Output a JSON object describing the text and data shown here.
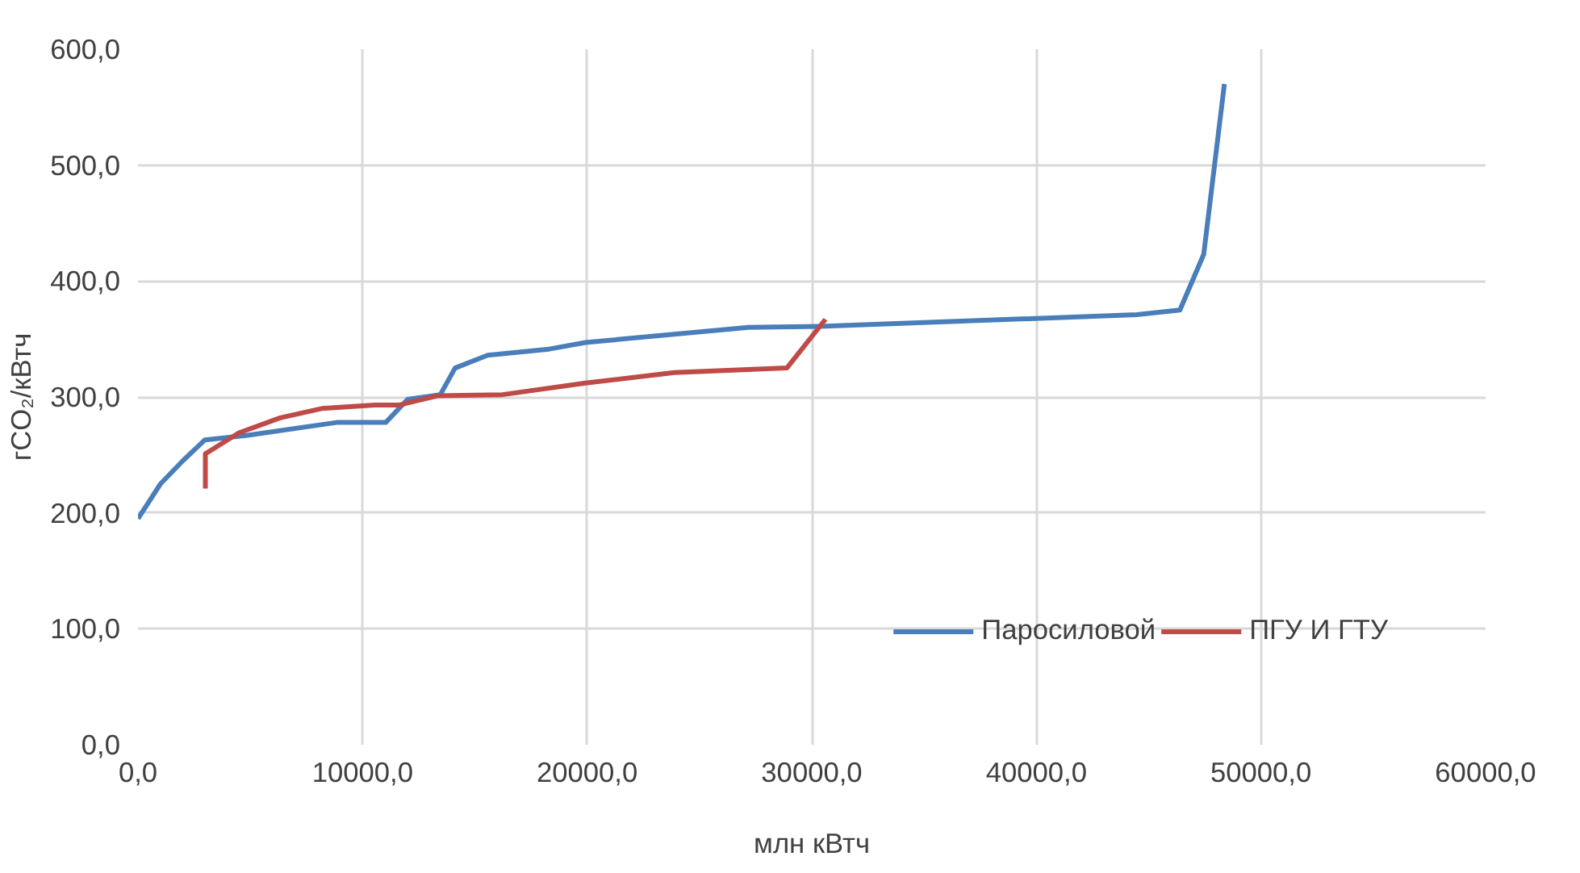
{
  "chart_data": {
    "type": "line",
    "xlabel": "млн кВтч",
    "ylabel": "гCO₂/кВтч",
    "xlim": [
      0,
      60000
    ],
    "ylim": [
      0,
      600
    ],
    "xticks": [
      {
        "value": 0,
        "label": "0,0"
      },
      {
        "value": 10000,
        "label": "10000,0"
      },
      {
        "value": 20000,
        "label": "20000,0"
      },
      {
        "value": 30000,
        "label": "30000,0"
      },
      {
        "value": 40000,
        "label": "40000,0"
      },
      {
        "value": 50000,
        "label": "50000,0"
      },
      {
        "value": 60000,
        "label": "60000,0"
      }
    ],
    "yticks": [
      {
        "value": 0,
        "label": "0,0"
      },
      {
        "value": 100,
        "label": "100,0"
      },
      {
        "value": 200,
        "label": "200,0"
      },
      {
        "value": 300,
        "label": "300,0"
      },
      {
        "value": 400,
        "label": "400,0"
      },
      {
        "value": 500,
        "label": "500,0"
      },
      {
        "value": 600,
        "label": "600,0"
      }
    ],
    "grid": true,
    "legend": "bottom right",
    "marker": "none",
    "line_style": "solid",
    "series": [
      {
        "name": "Паросиловой",
        "color": "#4a7ebb",
        "x": [
          0,
          500,
          1000,
          2000,
          2980,
          4880,
          8840,
          11030,
          12010,
          13460,
          14120,
          15570,
          18210,
          19920,
          27180,
          30610,
          44470,
          46390,
          47450,
          48370
        ],
        "values": [
          195,
          210,
          225,
          245,
          263,
          267,
          278,
          278,
          298,
          302,
          325,
          336,
          341,
          347,
          360,
          361,
          371,
          375,
          423,
          570
        ]
      },
      {
        "name": "ПГУ И ГТУ",
        "color": "#be4b48",
        "x": [
          3000,
          3000,
          4490,
          6330,
          8180,
          10550,
          11610,
          13330,
          16230,
          19920,
          23880,
          28890,
          30610
        ],
        "values": [
          221,
          251,
          269,
          282,
          290,
          293,
          293,
          301,
          302,
          312,
          321,
          325,
          367
        ]
      }
    ]
  }
}
